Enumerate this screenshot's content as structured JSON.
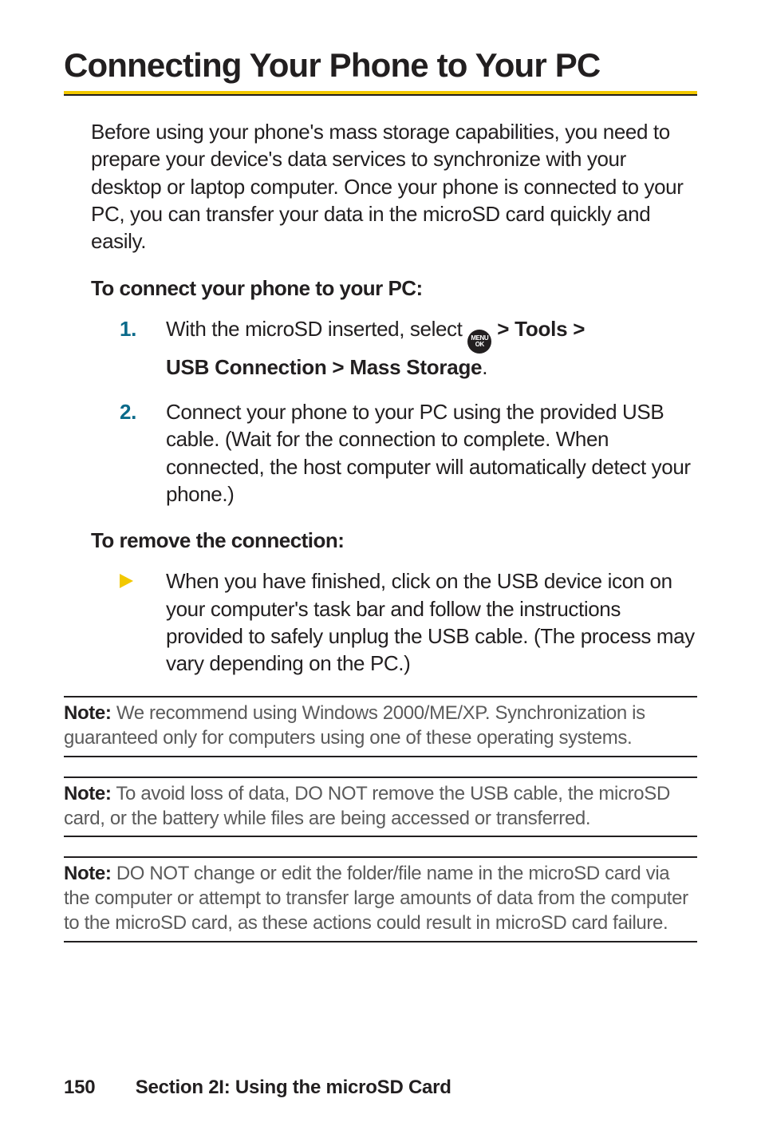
{
  "title": "Connecting Your Phone to Your PC",
  "intro": "Before using your phone's mass storage capabilities, you need to prepare your device's data services to synchronize with your desktop or laptop computer. Once your phone is connected to your PC, you can transfer your data in the microSD card quickly and easily.",
  "connect_heading": "To connect your phone to your PC:",
  "menu_icon": {
    "top": "MENU",
    "bottom": "OK"
  },
  "step1": {
    "num": "1.",
    "pre": "With the microSD inserted, select ",
    "seq_1": " > Tools > ",
    "seq_2": "USB Connection >  Mass Storage",
    "post": "."
  },
  "step2": {
    "num": "2.",
    "text": "Connect your phone to your PC using the provided USB cable. (Wait for the connection to complete. When connected, the host computer will automatically detect your phone.)"
  },
  "remove_heading": "To remove the connection:",
  "remove_item": "When you have finished, click on the USB device icon on your computer's task bar and follow the instructions provided to safely unplug the USB cable. (The process may vary depending on the PC.)",
  "notes": [
    {
      "label": "Note:",
      "text": " We recommend using Windows 2000/ME/XP. Synchronization is guaranteed only for computers using one of these operating systems."
    },
    {
      "label": "Note:",
      "text": " To avoid loss of data, DO NOT remove the USB cable, the microSD card, or the battery while files are being accessed or transferred."
    },
    {
      "label": "Note:",
      "text": " DO NOT change or edit the folder/file name in the microSD card via the computer or attempt to transfer large amounts of data from the computer to the microSD card, as these actions could result in microSD card failure."
    }
  ],
  "footer": {
    "page": "150",
    "section": "Section 2I: Using the microSD Card"
  },
  "colors": {
    "accent_yellow": "#f2c800",
    "accent_teal": "#0a6a8a",
    "text": "#221f20",
    "note_text": "#5b5b5b",
    "bg": "#ffffff"
  }
}
